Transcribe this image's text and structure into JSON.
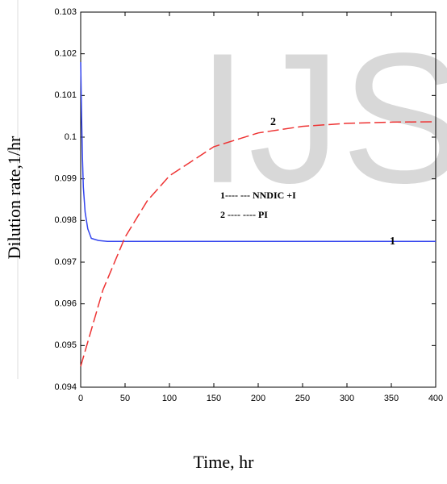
{
  "chart_data": {
    "type": "line",
    "watermark": "IJS",
    "x_label": "Time, hr",
    "y_label": "Dilution rate,1/hr",
    "series": [
      {
        "name": "1---- --- NNDIC +I",
        "color": "#3344ee",
        "dash": false,
        "x": [
          0,
          1,
          2,
          3,
          5,
          8,
          12,
          20,
          30,
          400
        ],
        "values": [
          0.1018,
          0.1005,
          0.0995,
          0.0988,
          0.0982,
          0.0978,
          0.09757,
          0.09752,
          0.0975,
          0.0975
        ]
      },
      {
        "name": "2 ---- ---- PI",
        "color": "#ee3333",
        "dash": true,
        "x": [
          0,
          25,
          50,
          75,
          100,
          150,
          200,
          250,
          300,
          350,
          400
        ],
        "values": [
          0.0945,
          0.09633,
          0.0976,
          0.09847,
          0.09907,
          0.09977,
          0.1001,
          0.10026,
          0.10033,
          0.10036,
          0.10037
        ]
      }
    ],
    "curve_labels": [
      "1",
      "2"
    ],
    "xlim": [
      0,
      400
    ],
    "xticks": [
      0,
      50,
      100,
      150,
      200,
      250,
      300,
      350,
      400
    ],
    "ylim": [
      0.094,
      0.103
    ],
    "yticks": [
      0.094,
      0.095,
      0.096,
      0.097,
      0.098,
      0.099,
      0.1,
      0.101,
      0.102,
      0.103
    ]
  }
}
